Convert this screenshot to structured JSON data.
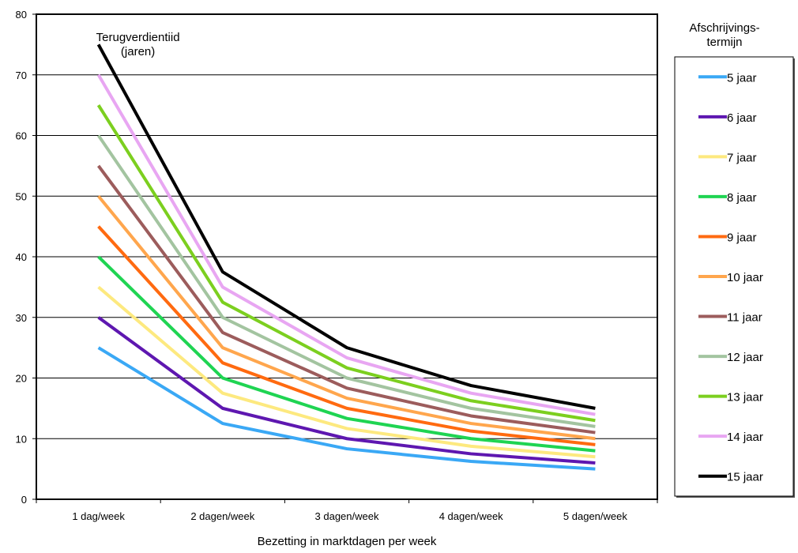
{
  "chart_data": {
    "type": "line",
    "categories": [
      "1 dag/week",
      "2 dagen/week",
      "3 dagen/week",
      "4 dagen/week",
      "5 dagen/week"
    ],
    "xlabel": "Bezetting in marktdagen per week",
    "ylabel": "",
    "ylim": [
      0,
      80
    ],
    "yticks": [
      0,
      10,
      20,
      30,
      40,
      50,
      60,
      70,
      80
    ],
    "grid": true,
    "annotation": [
      "Terugverdientiid",
      "(jaren)"
    ],
    "legend": {
      "title": [
        "Afschrijvings-",
        "termijn"
      ],
      "placement": "right"
    },
    "series": [
      {
        "name": "5 jaar",
        "color": "#3aa8f5",
        "values": [
          25,
          12.5,
          8.33,
          6.25,
          5
        ]
      },
      {
        "name": "6 jaar",
        "color": "#5e17b0",
        "values": [
          30,
          15,
          10,
          7.5,
          6
        ]
      },
      {
        "name": "7 jaar",
        "color": "#fde97f",
        "values": [
          35,
          17.5,
          11.67,
          8.75,
          7
        ]
      },
      {
        "name": "8 jaar",
        "color": "#1fd452",
        "values": [
          40,
          20,
          13.33,
          10,
          8
        ]
      },
      {
        "name": "9 jaar",
        "color": "#ff6a10",
        "values": [
          45,
          22.5,
          15,
          11.25,
          9
        ]
      },
      {
        "name": "10 jaar",
        "color": "#ffa64d",
        "values": [
          50,
          25,
          16.67,
          12.5,
          10
        ]
      },
      {
        "name": "11 jaar",
        "color": "#9c5c5c",
        "values": [
          55,
          27.5,
          18.33,
          13.75,
          11
        ]
      },
      {
        "name": "12 jaar",
        "color": "#a3c4a0",
        "values": [
          60,
          30,
          20,
          15,
          12
        ]
      },
      {
        "name": "13 jaar",
        "color": "#7ccf1f",
        "values": [
          65,
          32.5,
          21.67,
          16.25,
          13
        ]
      },
      {
        "name": "14 jaar",
        "color": "#e8a6f2",
        "values": [
          70,
          35,
          23.33,
          17.5,
          14
        ]
      },
      {
        "name": "15 jaar",
        "color": "#000000",
        "values": [
          75,
          37.5,
          25,
          18.75,
          15
        ]
      }
    ]
  }
}
